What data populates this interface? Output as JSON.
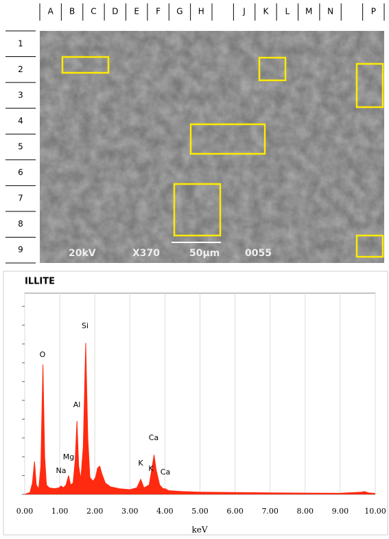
{
  "grid": {
    "columns": [
      "A",
      "B",
      "C",
      "D",
      "E",
      "F",
      "G",
      "H",
      "J",
      "K",
      "L",
      "M",
      "N",
      "P"
    ],
    "rows": [
      "1",
      "2",
      "3",
      "4",
      "5",
      "6",
      "7",
      "8",
      "9"
    ]
  },
  "image": {
    "labels": [
      "20kV",
      "X370",
      "50µm",
      "0055"
    ]
  },
  "chart_data": {
    "type": "line",
    "title": "ILLITE",
    "x_label": "keV",
    "color": "#ff2a10",
    "x": [
      0,
      0.15,
      0.22,
      0.28,
      0.33,
      0.4,
      0.46,
      0.52,
      0.57,
      0.62,
      0.7,
      0.85,
      0.98,
      1.04,
      1.1,
      1.18,
      1.25,
      1.31,
      1.38,
      1.44,
      1.49,
      1.54,
      1.6,
      1.67,
      1.74,
      1.8,
      1.86,
      1.95,
      2.02,
      2.08,
      2.14,
      2.2,
      2.3,
      2.45,
      2.7,
      3.0,
      3.2,
      3.31,
      3.4,
      3.55,
      3.63,
      3.69,
      3.75,
      3.85,
      3.95,
      4.01,
      4.1,
      4.5,
      5.0,
      6.0,
      7.0,
      8.0,
      9.0,
      9.6,
      9.7,
      9.8,
      10
    ],
    "values": [
      0,
      0.1,
      0.6,
      1.75,
      0.5,
      0.3,
      1.5,
      6.9,
      2.0,
      0.5,
      0.35,
      0.3,
      0.35,
      0.45,
      0.35,
      0.5,
      1.0,
      0.5,
      0.6,
      1.8,
      3.9,
      1.5,
      0.8,
      2.5,
      8.05,
      3.0,
      0.9,
      0.7,
      0.9,
      1.4,
      1.5,
      1.1,
      0.6,
      0.4,
      0.3,
      0.25,
      0.35,
      0.8,
      0.35,
      0.5,
      1.4,
      2.1,
      1.3,
      0.5,
      0.3,
      0.3,
      0.2,
      0.15,
      0.12,
      0.1,
      0.08,
      0.07,
      0.06,
      0.12,
      0.15,
      0.08,
      0.05
    ],
    "annotations": [
      "O",
      "Si",
      "Al",
      "Mg",
      "Na",
      "K",
      "K",
      "Ca",
      "Ca"
    ],
    "xlim": [
      0,
      10
    ],
    "ylim": [
      0,
      10.7
    ],
    "xticks": [
      {
        "value": 0,
        "label": "0.00"
      },
      {
        "value": 1,
        "label": "1.00"
      },
      {
        "value": 2,
        "label": "2.00"
      },
      {
        "value": 3,
        "label": "3.00"
      },
      {
        "value": 4,
        "label": "4.00"
      },
      {
        "value": 5,
        "label": "5.00"
      },
      {
        "value": 6,
        "label": "6.00"
      },
      {
        "value": 7,
        "label": "7.00"
      },
      {
        "value": 8,
        "label": "8.00"
      },
      {
        "value": 9,
        "label": "9.00"
      },
      {
        "value": 10,
        "label": "10.00"
      }
    ],
    "yticks": [
      0,
      1,
      2,
      3,
      4,
      5,
      6,
      7,
      8,
      9,
      10
    ],
    "grid": true
  }
}
